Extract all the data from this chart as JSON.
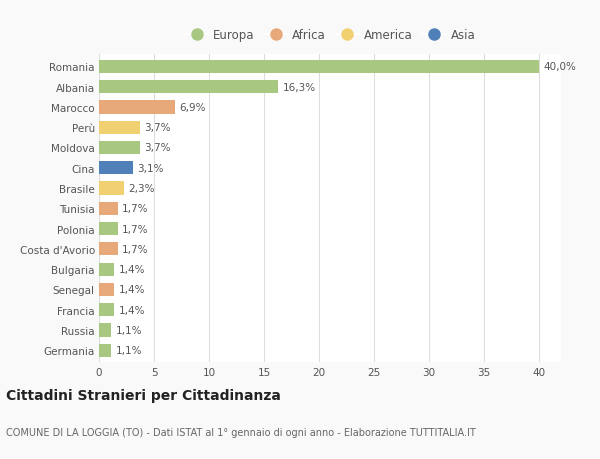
{
  "countries": [
    "Romania",
    "Albania",
    "Marocco",
    "Perù",
    "Moldova",
    "Cina",
    "Brasile",
    "Tunisia",
    "Polonia",
    "Costa d'Avorio",
    "Bulgaria",
    "Senegal",
    "Francia",
    "Russia",
    "Germania"
  ],
  "values": [
    40.0,
    16.3,
    6.9,
    3.7,
    3.7,
    3.1,
    2.3,
    1.7,
    1.7,
    1.7,
    1.4,
    1.4,
    1.4,
    1.1,
    1.1
  ],
  "labels": [
    "40,0%",
    "16,3%",
    "6,9%",
    "3,7%",
    "3,7%",
    "3,1%",
    "2,3%",
    "1,7%",
    "1,7%",
    "1,7%",
    "1,4%",
    "1,4%",
    "1,4%",
    "1,1%",
    "1,1%"
  ],
  "continents": [
    "Europa",
    "Europa",
    "Africa",
    "America",
    "Europa",
    "Asia",
    "America",
    "Africa",
    "Europa",
    "Africa",
    "Europa",
    "Africa",
    "Europa",
    "Europa",
    "Europa"
  ],
  "continent_colors": {
    "Europa": "#a8c882",
    "Africa": "#e8a97a",
    "America": "#f0d070",
    "Asia": "#5080b8"
  },
  "legend_order": [
    "Europa",
    "Africa",
    "America",
    "Asia"
  ],
  "title": "Cittadini Stranieri per Cittadinanza",
  "subtitle": "COMUNE DI LA LOGGIA (TO) - Dati ISTAT al 1° gennaio di ogni anno - Elaborazione TUTTITALIA.IT",
  "xlim": [
    0,
    42
  ],
  "xticks": [
    0,
    5,
    10,
    15,
    20,
    25,
    30,
    35,
    40
  ],
  "bg_color": "#f9f9f9",
  "plot_bg_color": "#ffffff",
  "grid_color": "#dddddd",
  "bar_height": 0.65,
  "label_fontsize": 7.5,
  "title_fontsize": 10,
  "subtitle_fontsize": 7,
  "tick_fontsize": 7.5,
  "legend_fontsize": 8.5
}
